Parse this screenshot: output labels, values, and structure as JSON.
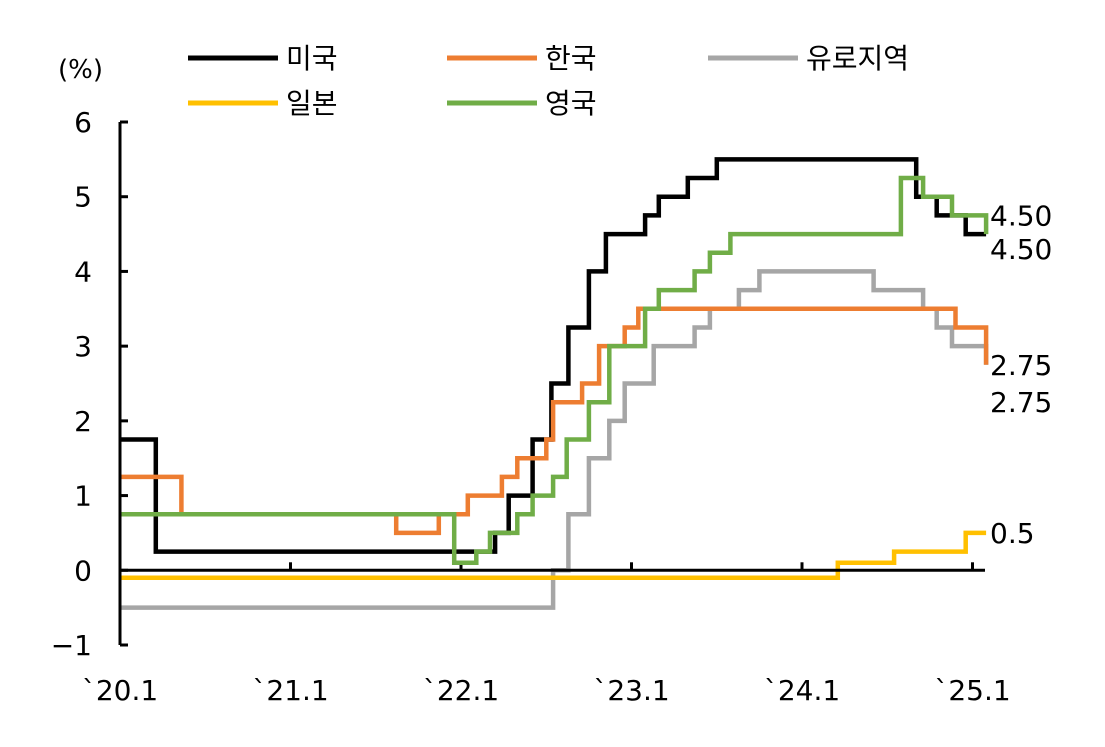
{
  "chart_data": {
    "type": "line",
    "step": true,
    "unit_label": "(%)",
    "ylim": [
      -1,
      6
    ],
    "yticks": [
      -1,
      0,
      1,
      2,
      3,
      4,
      5,
      6
    ],
    "xlim": [
      2020.0,
      2025.08
    ],
    "xticks": [
      {
        "value": 2020.0,
        "label": "`20.1"
      },
      {
        "value": 2021.0,
        "label": "`21.1"
      },
      {
        "value": 2022.0,
        "label": "`22.1"
      },
      {
        "value": 2023.0,
        "label": "`23.1"
      },
      {
        "value": 2024.0,
        "label": "`24.1"
      },
      {
        "value": 2025.0,
        "label": "`25.1"
      }
    ],
    "grid": false,
    "legend_position": "top",
    "series": [
      {
        "name": "미국",
        "color": "#000000",
        "x": [
          2020.0,
          2020.18,
          2020.21,
          2022.2,
          2022.28,
          2022.42,
          2022.53,
          2022.63,
          2022.75,
          2022.85,
          2022.96,
          2023.08,
          2023.16,
          2023.33,
          2023.5,
          2024.67,
          2024.79,
          2024.96,
          2025.08
        ],
        "y": [
          1.75,
          1.75,
          0.25,
          0.5,
          1.0,
          1.75,
          2.5,
          3.25,
          4.0,
          4.5,
          4.5,
          4.75,
          5.0,
          5.25,
          5.5,
          5.0,
          4.75,
          4.5,
          4.5
        ]
      },
      {
        "name": "한국",
        "color": "#ED7D31",
        "x": [
          2020.0,
          2020.18,
          2020.36,
          2021.62,
          2021.87,
          2022.04,
          2022.24,
          2022.33,
          2022.5,
          2022.54,
          2022.71,
          2022.81,
          2022.96,
          2023.04,
          2024.83,
          2024.9,
          2025.08
        ],
        "y": [
          1.25,
          1.25,
          0.75,
          0.5,
          0.75,
          1.0,
          1.25,
          1.5,
          1.75,
          2.25,
          2.5,
          3.0,
          3.25,
          3.5,
          3.5,
          3.25,
          2.75
        ]
      },
      {
        "name": "유로지역",
        "color": "#A6A6A6",
        "x": [
          2020.0,
          2022.54,
          2022.63,
          2022.75,
          2022.87,
          2022.96,
          2023.13,
          2023.2,
          2023.37,
          2023.46,
          2023.63,
          2023.75,
          2024.42,
          2024.54,
          2024.71,
          2024.79,
          2024.88,
          2025.08
        ],
        "y": [
          -0.5,
          0.0,
          0.75,
          1.5,
          2.0,
          2.5,
          3.0,
          3.0,
          3.25,
          3.5,
          3.75,
          4.0,
          3.75,
          3.75,
          3.5,
          3.25,
          3.0,
          2.75
        ]
      },
      {
        "name": "일본",
        "color": "#FFC000",
        "x": [
          2020.0,
          2024.21,
          2024.54,
          2024.96,
          2025.08
        ],
        "y": [
          -0.1,
          0.1,
          0.25,
          0.5,
          0.5
        ]
      },
      {
        "name": "영국",
        "color": "#70AD47",
        "x": [
          2020.0,
          2020.18,
          2021.96,
          2022.09,
          2022.17,
          2022.33,
          2022.42,
          2022.54,
          2022.62,
          2022.75,
          2022.87,
          2023.08,
          2023.16,
          2023.37,
          2023.46,
          2023.58,
          2024.58,
          2024.71,
          2024.88,
          2025.08
        ],
        "y": [
          0.75,
          0.75,
          0.1,
          0.25,
          0.5,
          0.75,
          1.0,
          1.25,
          1.75,
          2.25,
          3.0,
          3.5,
          3.75,
          4.0,
          4.25,
          4.5,
          5.25,
          5.0,
          4.75,
          4.5
        ]
      }
    ],
    "annotations": [
      {
        "text": "4.50",
        "x": 2025.08,
        "y": 4.75
      },
      {
        "text": "4.50",
        "x": 2025.08,
        "y": 4.3
      },
      {
        "text": "2.75",
        "x": 2025.08,
        "y": 2.75
      },
      {
        "text": "2.75",
        "x": 2025.08,
        "y": 2.25
      },
      {
        "text": "0.5",
        "x": 2025.08,
        "y": 0.5
      }
    ]
  }
}
